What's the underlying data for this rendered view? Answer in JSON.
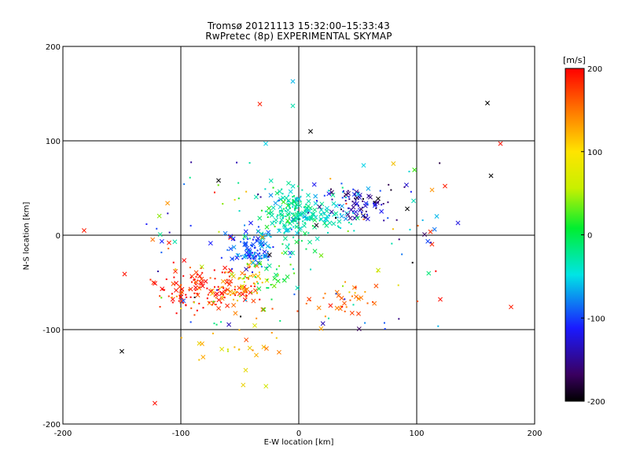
{
  "title": "Tromsø 20121113 15:32:00–15:33:43",
  "subtitle": "RwPretec (8p) EXPERIMENTAL SKYMAP",
  "colorbar": {
    "unit": "[m/s]",
    "range": [
      -200,
      200
    ],
    "ticks": [
      "200",
      "100",
      "0",
      "-100",
      "-200"
    ]
  },
  "chart_data": {
    "type": "scatter",
    "title": "Tromsø 20121113 15:32:00–15:33:43",
    "subtitle": "RwPretec (8p) EXPERIMENTAL SKYMAP",
    "xlabel": "E-W location [km]",
    "ylabel": "N-S location [km]",
    "xlim": [
      -200,
      200
    ],
    "ylim": [
      -200,
      200
    ],
    "xticks": [
      -200,
      -100,
      0,
      100,
      200
    ],
    "yticks": [
      -200,
      -100,
      0,
      100,
      200
    ],
    "grid": true,
    "color_scale": "rainbow velocity [m/s], -200 (black) to 200 (red)",
    "clusters": [
      {
        "center": [
          -85,
          -55
        ],
        "spread": [
          18,
          12
        ],
        "count": 110,
        "velocity": 190
      },
      {
        "center": [
          -55,
          -62
        ],
        "spread": [
          12,
          8
        ],
        "count": 45,
        "velocity": 175
      },
      {
        "center": [
          -45,
          -50
        ],
        "spread": [
          10,
          8
        ],
        "count": 40,
        "velocity": 115
      },
      {
        "center": [
          -40,
          -15
        ],
        "spread": [
          10,
          10
        ],
        "count": 110,
        "velocity": -95
      },
      {
        "center": [
          -5,
          22
        ],
        "spread": [
          14,
          14
        ],
        "count": 200,
        "velocity": -15
      },
      {
        "center": [
          30,
          20
        ],
        "spread": [
          10,
          12
        ],
        "count": 40,
        "velocity": -40
      },
      {
        "center": [
          50,
          32
        ],
        "spread": [
          16,
          10
        ],
        "count": 90,
        "velocity": -150
      },
      {
        "center": [
          40,
          -70
        ],
        "spread": [
          14,
          10
        ],
        "count": 35,
        "velocity": 155
      },
      {
        "center": [
          -25,
          -42
        ],
        "spread": [
          12,
          10
        ],
        "count": 30,
        "velocity": 25
      },
      {
        "center": [
          -50,
          -110
        ],
        "spread": [
          20,
          20
        ],
        "count": 25,
        "velocity": 120
      }
    ],
    "points": [
      {
        "x": -5,
        "y": 163,
        "v": -60,
        "m": "x"
      },
      {
        "x": -5,
        "y": 137,
        "v": -20,
        "m": "x"
      },
      {
        "x": -33,
        "y": 139,
        "v": 190,
        "m": "x"
      },
      {
        "x": 160,
        "y": 140,
        "v": -200,
        "m": "x"
      },
      {
        "x": 10,
        "y": 110,
        "v": -200,
        "m": "x"
      },
      {
        "x": 171,
        "y": 97,
        "v": 195,
        "m": "x"
      },
      {
        "x": -28,
        "y": 97,
        "v": -50,
        "m": "x"
      },
      {
        "x": 163,
        "y": 63,
        "v": -200,
        "m": "x"
      },
      {
        "x": -150,
        "y": -123,
        "v": -200,
        "m": "x"
      },
      {
        "x": -122,
        "y": -178,
        "v": 195,
        "m": "x"
      },
      {
        "x": 180,
        "y": -76,
        "v": 190,
        "m": "x"
      },
      {
        "x": 135,
        "y": 13,
        "v": -130,
        "m": "x"
      },
      {
        "x": 117,
        "y": 20,
        "v": -60,
        "m": "x"
      },
      {
        "x": 124,
        "y": 52,
        "v": 190,
        "m": "x"
      },
      {
        "x": 113,
        "y": 48,
        "v": 140,
        "m": "x"
      },
      {
        "x": 55,
        "y": 74,
        "v": -50,
        "m": "x"
      },
      {
        "x": 92,
        "y": 28,
        "v": -200,
        "m": "x"
      },
      {
        "x": -36,
        "y": -127,
        "v": 125,
        "m": "x"
      },
      {
        "x": -82,
        "y": -115,
        "v": 130,
        "m": "x"
      },
      {
        "x": -45,
        "y": -143,
        "v": 100,
        "m": "x"
      },
      {
        "x": -68,
        "y": 58,
        "v": -200,
        "m": "x"
      },
      {
        "x": -182,
        "y": 5,
        "v": 190,
        "m": "x"
      },
      {
        "x": -110,
        "y": -8,
        "v": 190,
        "m": "x"
      },
      {
        "x": 120,
        "y": -68,
        "v": 195,
        "m": "x"
      }
    ]
  }
}
